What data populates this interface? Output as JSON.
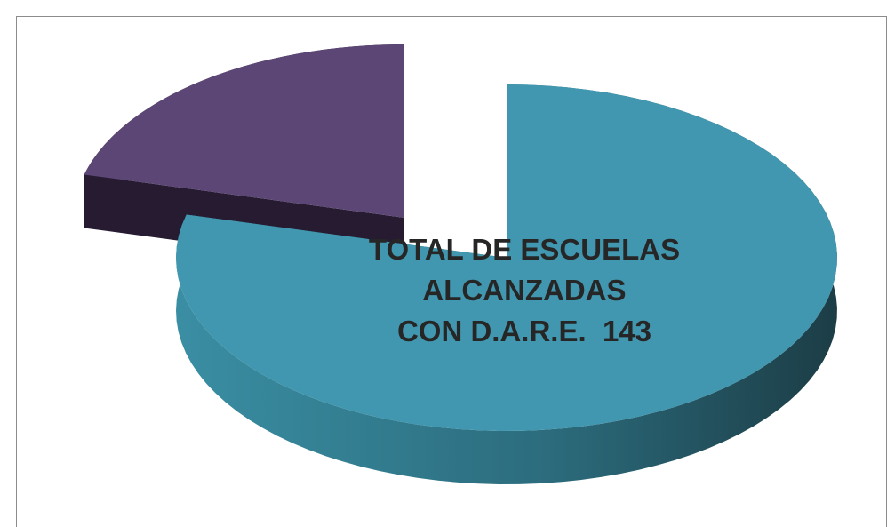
{
  "chart_data": {
    "type": "pie",
    "categories": [
      null,
      null
    ],
    "values": [
      143,
      38
    ],
    "value_labels": [
      "TOTAL DE ESCUELAS\nALCANZADAS\nCON D.A.R.E.  143",
      null
    ],
    "colors": [
      "#4197af",
      "#5c4675"
    ],
    "side_colors": [
      "url(#tealSide)",
      "#261b31"
    ]
  }
}
